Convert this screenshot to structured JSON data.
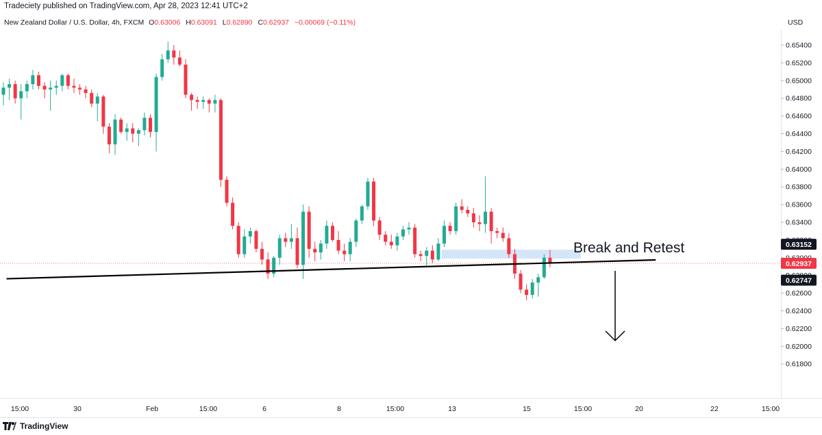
{
  "header": {
    "publisher": "Tradeciety published on TradingView.com, Apr 28, 2023 12:41 UTC+2",
    "symbol": "New Zealand Dollar / U.S. Dollar, 4h, FXCM",
    "ohlc": [
      {
        "key": "O",
        "value": "0.63006"
      },
      {
        "key": "H",
        "value": "0.63091"
      },
      {
        "key": "L",
        "value": "0.62890"
      },
      {
        "key": "C",
        "value": "0.62937"
      }
    ],
    "change": "−0.00069 (−0.11%)",
    "currency": "USD"
  },
  "footer": {
    "brand": "TradingView"
  },
  "colors": {
    "up": "#22ab94",
    "down": "#f23645",
    "line": "#000000",
    "zone": "#c7dcf5"
  },
  "chart_data": {
    "type": "candlestick",
    "y_axis": {
      "range": [
        0.617,
        0.656
      ],
      "ticks": [
        "0.65400",
        "0.65200",
        "0.65000",
        "0.64800",
        "0.64600",
        "0.64400",
        "0.64200",
        "0.64000",
        "0.63800",
        "0.63600",
        "0.63400",
        "0.63200",
        "0.63000",
        "0.62800",
        "0.62600",
        "0.62400",
        "0.62200",
        "0.62000",
        "0.61800"
      ]
    },
    "x_axis": {
      "ticks": [
        "15:00",
        "30",
        "Feb",
        "15:00",
        "6",
        "8",
        "15:00",
        "13",
        "15",
        "15:00",
        "20",
        "22",
        "15:00"
      ]
    },
    "price_labels": [
      {
        "value": 0.63152,
        "text": "0.63152",
        "style": "dark"
      },
      {
        "value": 0.62937,
        "text": "0.62937",
        "style": "red"
      },
      {
        "value": 0.62747,
        "text": "0.62747",
        "style": "dark"
      }
    ],
    "annotation": "Break and Retest",
    "trendline": {
      "start": [
        1,
        0.62747
      ],
      "end": [
        97,
        0.63152
      ]
    },
    "retest_zone": {
      "from_candle": 75,
      "to_candle": 91,
      "low": 0.6299,
      "high": 0.6309
    },
    "current_price": 0.62937,
    "candles": [
      [
        0.6484,
        0.6498,
        0.6472,
        0.6492
      ],
      [
        0.6492,
        0.6502,
        0.6478,
        0.6496
      ],
      [
        0.6496,
        0.65,
        0.6474,
        0.648
      ],
      [
        0.648,
        0.6496,
        0.6456,
        0.6488
      ],
      [
        0.6488,
        0.65,
        0.648,
        0.6496
      ],
      [
        0.6496,
        0.6512,
        0.649,
        0.6506
      ],
      [
        0.6506,
        0.651,
        0.649,
        0.6494
      ],
      [
        0.6494,
        0.6498,
        0.648,
        0.649
      ],
      [
        0.649,
        0.65,
        0.6466,
        0.6492
      ],
      [
        0.6492,
        0.65,
        0.6484,
        0.6494
      ],
      [
        0.6494,
        0.6508,
        0.6488,
        0.6506
      ],
      [
        0.6506,
        0.6508,
        0.649,
        0.6494
      ],
      [
        0.6494,
        0.6502,
        0.6486,
        0.6492
      ],
      [
        0.6492,
        0.6496,
        0.6484,
        0.649
      ],
      [
        0.649,
        0.6494,
        0.648,
        0.6486
      ],
      [
        0.6486,
        0.649,
        0.647,
        0.6474
      ],
      [
        0.6474,
        0.6486,
        0.6454,
        0.6482
      ],
      [
        0.6482,
        0.6484,
        0.644,
        0.6448
      ],
      [
        0.6448,
        0.6452,
        0.6418,
        0.6428
      ],
      [
        0.6428,
        0.6462,
        0.6416,
        0.6456
      ],
      [
        0.6456,
        0.6458,
        0.644,
        0.6442
      ],
      [
        0.6442,
        0.6452,
        0.6432,
        0.6446
      ],
      [
        0.6446,
        0.6452,
        0.643,
        0.644
      ],
      [
        0.644,
        0.6446,
        0.6426,
        0.6444
      ],
      [
        0.6444,
        0.6464,
        0.6438,
        0.6458
      ],
      [
        0.6458,
        0.6462,
        0.6436,
        0.6442
      ],
      [
        0.6442,
        0.6508,
        0.642,
        0.6504
      ],
      [
        0.6504,
        0.653,
        0.65,
        0.6524
      ],
      [
        0.6524,
        0.6544,
        0.652,
        0.6534
      ],
      [
        0.6534,
        0.654,
        0.6518,
        0.6526
      ],
      [
        0.6526,
        0.6534,
        0.6516,
        0.6518
      ],
      [
        0.6518,
        0.6524,
        0.648,
        0.6484
      ],
      [
        0.6484,
        0.6486,
        0.6466,
        0.6478
      ],
      [
        0.6478,
        0.6482,
        0.6468,
        0.6476
      ],
      [
        0.6476,
        0.6482,
        0.6468,
        0.6478
      ],
      [
        0.6478,
        0.648,
        0.6464,
        0.6474
      ],
      [
        0.6474,
        0.6484,
        0.6464,
        0.6478
      ],
      [
        0.6478,
        0.648,
        0.638,
        0.6388
      ],
      [
        0.6388,
        0.6392,
        0.6358,
        0.6362
      ],
      [
        0.6362,
        0.6368,
        0.6332,
        0.6336
      ],
      [
        0.6336,
        0.634,
        0.63,
        0.6304
      ],
      [
        0.6304,
        0.6332,
        0.63,
        0.6324
      ],
      [
        0.6324,
        0.6334,
        0.6316,
        0.633
      ],
      [
        0.633,
        0.6332,
        0.6306,
        0.631
      ],
      [
        0.631,
        0.6318,
        0.6292,
        0.6298
      ],
      [
        0.6298,
        0.6306,
        0.6276,
        0.6282
      ],
      [
        0.6282,
        0.6302,
        0.6278,
        0.63
      ],
      [
        0.63,
        0.6326,
        0.6292,
        0.6322
      ],
      [
        0.6322,
        0.6328,
        0.6312,
        0.6318
      ],
      [
        0.6318,
        0.6338,
        0.631,
        0.6322
      ],
      [
        0.6322,
        0.6334,
        0.6288,
        0.6292
      ],
      [
        0.6292,
        0.636,
        0.6276,
        0.6352
      ],
      [
        0.6352,
        0.6358,
        0.63,
        0.631
      ],
      [
        0.631,
        0.6318,
        0.6296,
        0.6306
      ],
      [
        0.6306,
        0.632,
        0.6298,
        0.6316
      ],
      [
        0.6316,
        0.6342,
        0.631,
        0.6336
      ],
      [
        0.6336,
        0.634,
        0.6318,
        0.632
      ],
      [
        0.632,
        0.633,
        0.6304,
        0.6308
      ],
      [
        0.6308,
        0.6316,
        0.6296,
        0.6304
      ],
      [
        0.6304,
        0.6322,
        0.6296,
        0.6318
      ],
      [
        0.6318,
        0.6344,
        0.6312,
        0.6342
      ],
      [
        0.6342,
        0.636,
        0.6338,
        0.6358
      ],
      [
        0.6358,
        0.639,
        0.6354,
        0.6386
      ],
      [
        0.6386,
        0.639,
        0.6336,
        0.6342
      ],
      [
        0.6342,
        0.6346,
        0.632,
        0.6326
      ],
      [
        0.6326,
        0.633,
        0.6314,
        0.6318
      ],
      [
        0.6318,
        0.6326,
        0.631,
        0.6314
      ],
      [
        0.6314,
        0.6328,
        0.6308,
        0.6324
      ],
      [
        0.6324,
        0.6336,
        0.632,
        0.6332
      ],
      [
        0.6332,
        0.634,
        0.6326,
        0.6334
      ],
      [
        0.6334,
        0.6338,
        0.63,
        0.6304
      ],
      [
        0.6304,
        0.6308,
        0.6296,
        0.6302
      ],
      [
        0.6302,
        0.6312,
        0.629,
        0.6308
      ],
      [
        0.6308,
        0.6314,
        0.6294,
        0.6298
      ],
      [
        0.6298,
        0.6322,
        0.6296,
        0.6316
      ],
      [
        0.6316,
        0.6342,
        0.6312,
        0.6336
      ],
      [
        0.6336,
        0.634,
        0.6326,
        0.633
      ],
      [
        0.633,
        0.6362,
        0.6326,
        0.6358
      ],
      [
        0.6358,
        0.6366,
        0.635,
        0.6354
      ],
      [
        0.6354,
        0.6358,
        0.6346,
        0.635
      ],
      [
        0.635,
        0.6356,
        0.6334,
        0.634
      ],
      [
        0.634,
        0.6348,
        0.633,
        0.6338
      ],
      [
        0.6338,
        0.6392,
        0.6328,
        0.6352
      ],
      [
        0.6352,
        0.6356,
        0.6316,
        0.633
      ],
      [
        0.633,
        0.6334,
        0.6322,
        0.6328
      ],
      [
        0.6328,
        0.6334,
        0.6318,
        0.6322
      ],
      [
        0.6322,
        0.6328,
        0.63,
        0.6304
      ],
      [
        0.6304,
        0.631,
        0.6276,
        0.6282
      ],
      [
        0.6282,
        0.6286,
        0.626,
        0.6264
      ],
      [
        0.6264,
        0.627,
        0.6252,
        0.6258
      ],
      [
        0.6258,
        0.6276,
        0.6254,
        0.6272
      ],
      [
        0.6272,
        0.6282,
        0.6256,
        0.6278
      ],
      [
        0.6278,
        0.6304,
        0.6276,
        0.63
      ],
      [
        0.63,
        0.6309,
        0.6289,
        0.62937
      ]
    ]
  }
}
